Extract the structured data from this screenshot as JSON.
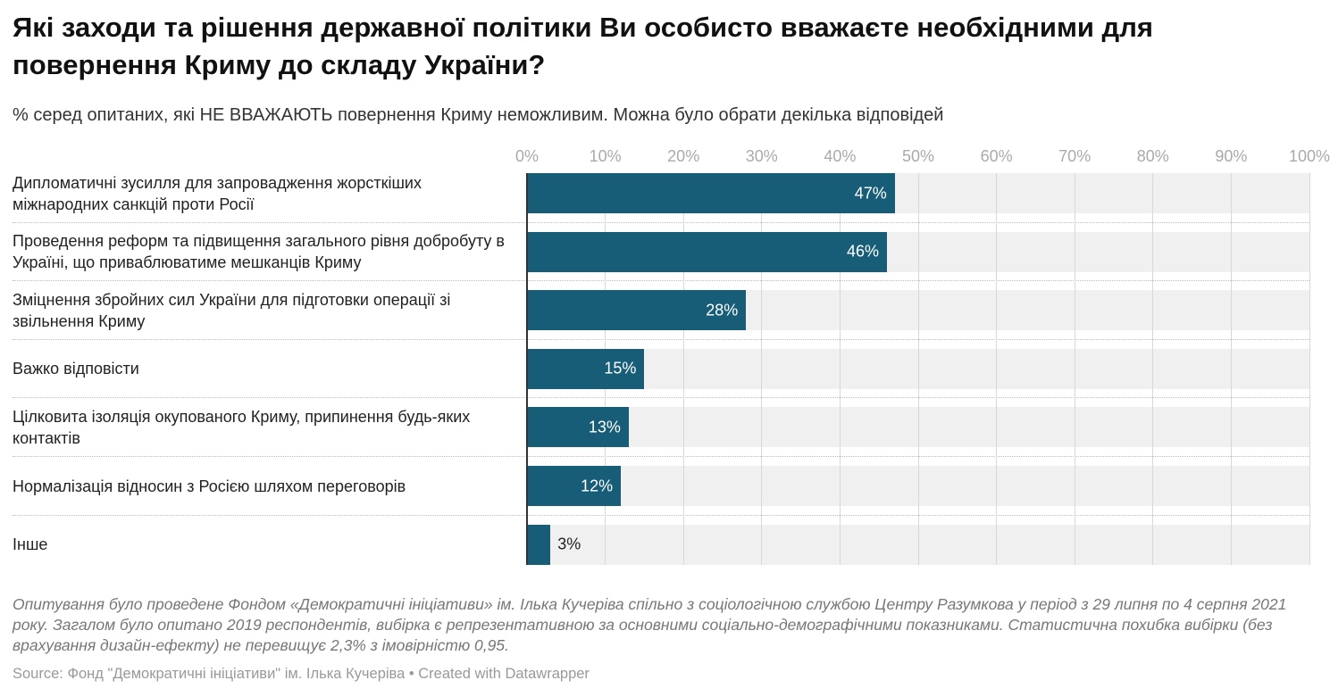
{
  "chart_data": {
    "type": "bar",
    "title": "Які заходи та рішення державної політики Ви особисто вважаєте необхідними для повернення Криму до складу України?",
    "subtitle": "% серед опитаних, які НЕ ВВАЖАЮТЬ повернення Криму неможливим. Можна було обрати декілька відповідей",
    "categories": [
      "Дипломатичні зусилля для запровадження жорсткіших міжнародних санкцій проти Росії",
      "Проведення реформ та підвищення загального рівня добробуту в Україні, що приваблюватиме мешканців Криму",
      "Зміцнення збройних сил України для підготовки операції зі звільнення Криму",
      "Важко відповісти",
      "Цілковита ізоляція окупованого Криму, припинення будь-яких контактів",
      "Нормалізація відносин з Росією шляхом переговорів",
      "Інше"
    ],
    "values": [
      47,
      46,
      28,
      15,
      13,
      12,
      3
    ],
    "value_labels": [
      "47%",
      "46%",
      "28%",
      "15%",
      "13%",
      "12%",
      "3%"
    ],
    "color": "#175d78",
    "xlim": [
      0,
      100
    ],
    "xticks": [
      {
        "value": 0,
        "label": "0%"
      },
      {
        "value": 10,
        "label": "10%"
      },
      {
        "value": 20,
        "label": "20%"
      },
      {
        "value": 30,
        "label": "30%"
      },
      {
        "value": 40,
        "label": "40%"
      },
      {
        "value": 50,
        "label": "50%"
      },
      {
        "value": 60,
        "label": "60%"
      },
      {
        "value": 70,
        "label": "70%"
      },
      {
        "value": 80,
        "label": "80%"
      },
      {
        "value": 90,
        "label": "90%"
      },
      {
        "value": 100,
        "label": "100%"
      }
    ],
    "grid": true,
    "note": "Опитування було проведене Фондом «Демократичні ініціативи» ім. Ілька Кучеріва спільно з соціологічною службою Центру Разумкова у період з 29 липня по 4 серпня 2021 року. Загалом було опитано 2019 респондентів, вибірка є репрезентативною за основними соціально-демографічними показниками. Статистична похибка вибірки (без врахування дизайн-ефекту) не перевищує 2,3% з імовірністю 0,95.",
    "source": "Source: Фонд \"Демократичні ініціативи\" ім. Ілька Кучеріва • Created with Datawrapper"
  }
}
